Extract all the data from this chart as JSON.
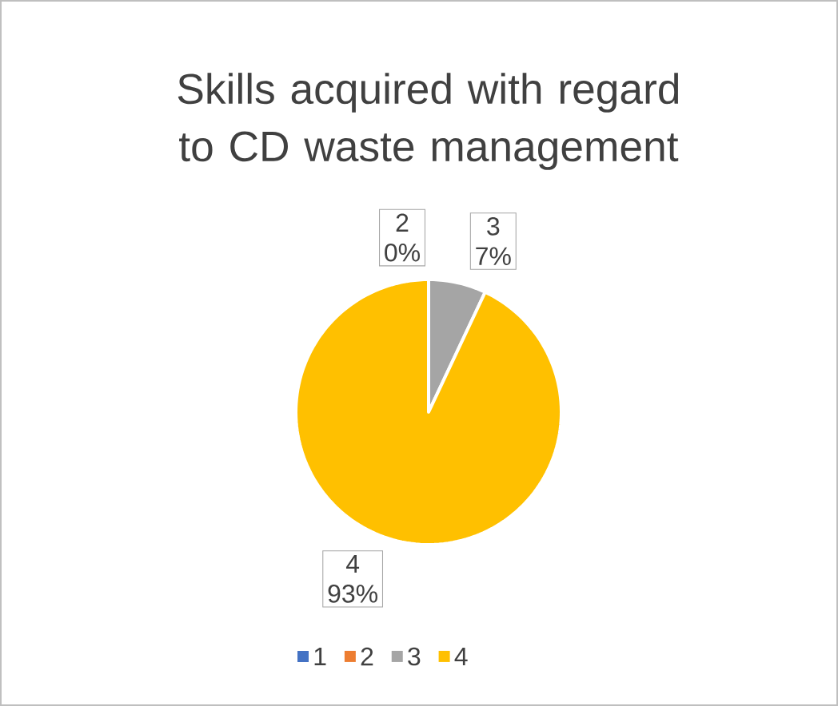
{
  "chart_data": {
    "type": "pie",
    "title": "Skills acquired with regard to CD waste management",
    "categories": [
      "1",
      "2",
      "3",
      "4"
    ],
    "values": [
      0,
      0,
      7,
      93
    ],
    "colors": [
      "#4472c4",
      "#ed7d31",
      "#a5a5a5",
      "#ffc000"
    ],
    "value_labels": [
      null,
      "0%",
      "7%",
      "93%"
    ],
    "legend": "bottom"
  }
}
